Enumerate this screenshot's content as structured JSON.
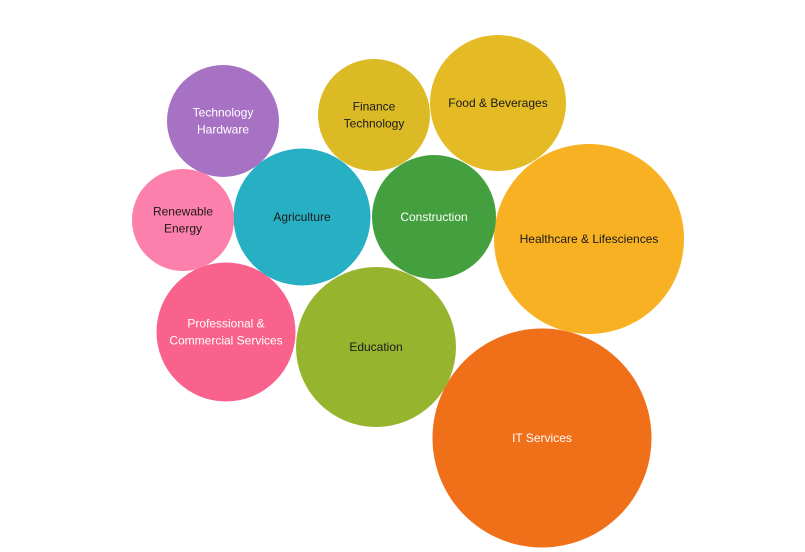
{
  "chart_data": {
    "type": "bubble",
    "title": "",
    "legend": "none",
    "bubbles": [
      {
        "label": [
          "IT Services"
        ],
        "value": 219,
        "color": "#f07019",
        "text_color": "#ffffff"
      },
      {
        "label": [
          "Healthcare & Lifesciences"
        ],
        "value": 190,
        "color": "#f8b122",
        "text_color": "#1a1a1a"
      },
      {
        "label": [
          "Education"
        ],
        "value": 160,
        "color": "#97b42f",
        "text_color": "#1a1a1a"
      },
      {
        "label": [
          "Professional &",
          "Commercial Services"
        ],
        "value": 139,
        "color": "#f8628c",
        "text_color": "#ffffff"
      },
      {
        "label": [
          "Agriculture"
        ],
        "value": 137,
        "color": "#27afc4",
        "text_color": "#1a1a1a"
      },
      {
        "label": [
          "Food & Beverages"
        ],
        "value": 136,
        "color": "#e5bb25",
        "text_color": "#1a1a1a"
      },
      {
        "label": [
          "Construction"
        ],
        "value": 124,
        "color": "#44a03f",
        "text_color": "#ffffff"
      },
      {
        "label": [
          "Technology",
          "Hardware"
        ],
        "value": 112,
        "color": "#a872c4",
        "text_color": "#ffffff"
      },
      {
        "label": [
          "Finance",
          "Technology"
        ],
        "value": 112,
        "color": "#dcba25",
        "text_color": "#1a1a1a"
      },
      {
        "label": [
          "Renewable",
          "Energy"
        ],
        "value": 102,
        "color": "#fd7fac",
        "text_color": "#1a1a1a"
      }
    ]
  }
}
